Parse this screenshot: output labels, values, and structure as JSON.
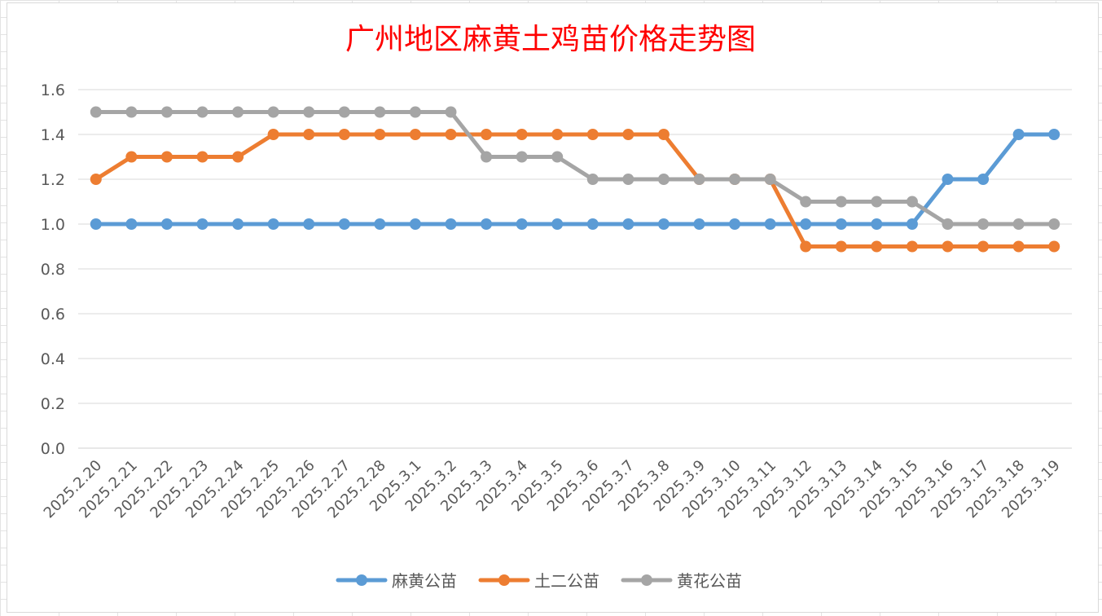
{
  "chart_data": {
    "type": "line",
    "title": "广州地区麻黄土鸡苗价格走势图",
    "xlabel": "",
    "ylabel": "",
    "ylim": [
      0,
      1.6
    ],
    "yticks": [
      "0.0",
      "0.2",
      "0.4",
      "0.6",
      "0.8",
      "1.0",
      "1.2",
      "1.4",
      "1.6"
    ],
    "grid": true,
    "legend_position": "bottom",
    "categories": [
      "2025.2.20",
      "2025.2.21",
      "2025.2.22",
      "2025.2.23",
      "2025.2.24",
      "2025.2.25",
      "2025.2.26",
      "2025.2.27",
      "2025.2.28",
      "2025.3.1",
      "2025.3.2",
      "2025.3.3",
      "2025.3.4",
      "2025.3.5",
      "2025.3.6",
      "2025.3.7",
      "2025.3.8",
      "2025.3.9",
      "2025.3.10",
      "2025.3.11",
      "2025.3.12",
      "2025.3.13",
      "2025.3.14",
      "2025.3.15",
      "2025.3.16",
      "2025.3.17",
      "2025.3.18",
      "2025.3.19"
    ],
    "series": [
      {
        "name": "麻黄公苗",
        "color": "#5b9bd5",
        "values": [
          1.0,
          1.0,
          1.0,
          1.0,
          1.0,
          1.0,
          1.0,
          1.0,
          1.0,
          1.0,
          1.0,
          1.0,
          1.0,
          1.0,
          1.0,
          1.0,
          1.0,
          1.0,
          1.0,
          1.0,
          1.0,
          1.0,
          1.0,
          1.0,
          1.2,
          1.2,
          1.4,
          1.4
        ]
      },
      {
        "name": "土二公苗",
        "color": "#ed7d31",
        "values": [
          1.2,
          1.3,
          1.3,
          1.3,
          1.3,
          1.4,
          1.4,
          1.4,
          1.4,
          1.4,
          1.4,
          1.4,
          1.4,
          1.4,
          1.4,
          1.4,
          1.4,
          1.2,
          1.2,
          1.2,
          0.9,
          0.9,
          0.9,
          0.9,
          0.9,
          0.9,
          0.9,
          0.9
        ]
      },
      {
        "name": "黄花公苗",
        "color": "#a5a5a5",
        "values": [
          1.5,
          1.5,
          1.5,
          1.5,
          1.5,
          1.5,
          1.5,
          1.5,
          1.5,
          1.5,
          1.5,
          1.3,
          1.3,
          1.3,
          1.2,
          1.2,
          1.2,
          1.2,
          1.2,
          1.2,
          1.1,
          1.1,
          1.1,
          1.1,
          1.0,
          1.0,
          1.0,
          1.0
        ]
      }
    ]
  }
}
